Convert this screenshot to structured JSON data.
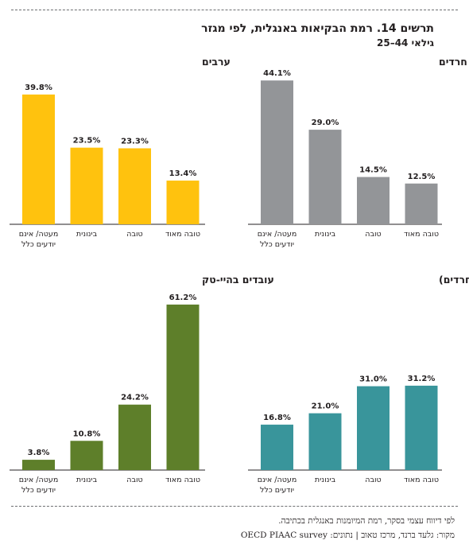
{
  "header": {
    "title": "תרשים 14. רמת הבקיאות באנגלית, לפי מגזר",
    "subtitle": "גילאי 44–25"
  },
  "footer": {
    "note": "לפי דיווח עצמי בסקר, רמת המיומנות באנגלית בכתיבה.",
    "source": "מקור: גלעד ברנד, מרכז טאוב | נתונים: OECD PIAAC survey"
  },
  "colors": {
    "charedim": "#939598",
    "aravim": "#ffc20e",
    "yehudim": "#39959b",
    "hitech": "#5e7f2a"
  },
  "chart_data": [
    {
      "type": "bar",
      "title": "חרדים",
      "categories": [
        "טובה מאוד",
        "טובה",
        "בינונית",
        "מעטה/ אינם יודעים כלל"
      ],
      "values": [
        12.5,
        14.5,
        29.0,
        44.1
      ],
      "value_labels": [
        "12.5%",
        "14.5%",
        "29.0%",
        "44.1%"
      ],
      "ylim": [
        0,
        50
      ]
    },
    {
      "type": "bar",
      "title": "ערבים",
      "categories": [
        "טובה מאוד",
        "טובה",
        "בינונית",
        "מעטה/ אינם יודעים כלל"
      ],
      "values": [
        13.4,
        23.3,
        23.5,
        39.8
      ],
      "value_labels": [
        "13.4%",
        "23.3%",
        "23.5%",
        "39.8%"
      ],
      "ylim": [
        0,
        50
      ]
    },
    {
      "type": "bar",
      "title": "יהודים (ללא חרדים)",
      "categories": [
        "טובה מאוד",
        "טובה",
        "בינונית",
        "מעטה/ אינם יודעים כלל"
      ],
      "values": [
        31.2,
        31.0,
        21.0,
        16.8
      ],
      "value_labels": [
        "31.2%",
        "31.0%",
        "21.0%",
        "16.8%"
      ],
      "ylim": [
        0,
        70
      ]
    },
    {
      "type": "bar",
      "title": "עובדים בהיי-טק",
      "categories": [
        "טובה מאוד",
        "טובה",
        "בינונית",
        "מעטה/ אינם יודעים כלל"
      ],
      "values": [
        61.2,
        24.2,
        10.8,
        3.8
      ],
      "value_labels": [
        "61.2%",
        "24.2%",
        "10.8%",
        "3.8%"
      ],
      "ylim": [
        0,
        70
      ]
    }
  ]
}
